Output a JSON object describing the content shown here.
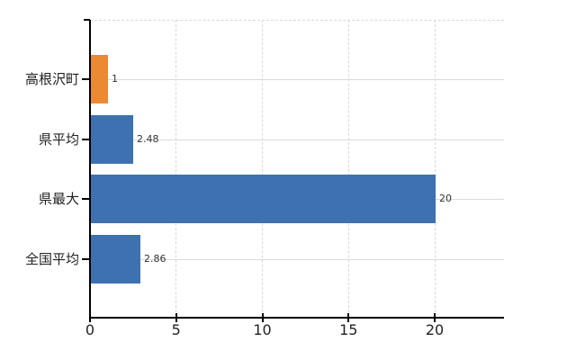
{
  "chart_data": {
    "type": "bar",
    "orientation": "horizontal",
    "title": "",
    "categories": [
      "高根沢町",
      "県平均",
      "県最大",
      "全国平均"
    ],
    "values": [
      1,
      2.48,
      20,
      2.86
    ],
    "value_labels": [
      "1",
      "2.48",
      "20",
      "2.86"
    ],
    "highlight_index": 0,
    "x_tick_labels": [
      "0",
      "5",
      "10",
      "15",
      "20"
    ],
    "x_tick_values": [
      0,
      5,
      10,
      15,
      20
    ],
    "xlim": [
      0,
      24
    ],
    "legend_position": "none",
    "grid": {
      "vertical": "dashed-at-ticks",
      "horizontal": "solid-at-category-centers",
      "top_border": "dashed"
    },
    "colors": {
      "highlight_bar": "#ec8a34",
      "bar": "#3d71b0",
      "axis": "#000000",
      "grid_vertical": "#d9d9d9",
      "grid_horizontal": "#d8ddd8",
      "value_label_text": "#333333",
      "tick_text": "#222222",
      "background": "#ffffff"
    }
  }
}
